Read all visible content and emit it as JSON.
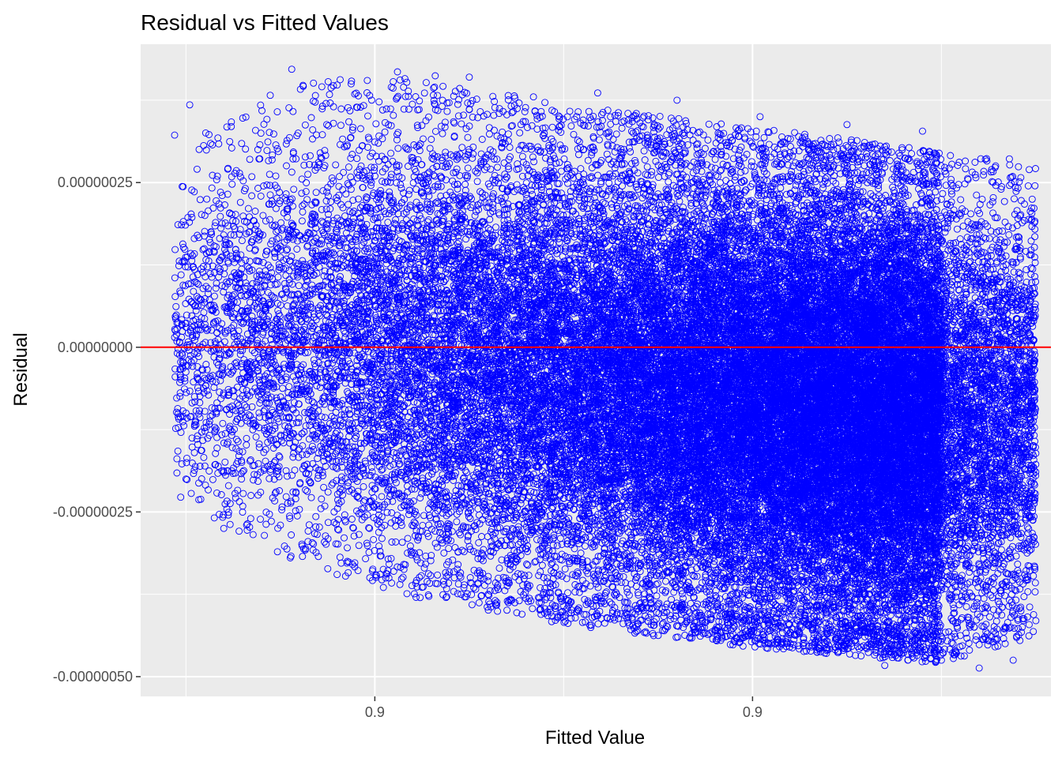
{
  "chart_data": {
    "type": "scatter",
    "title": "Residual vs Fitted Values",
    "xlabel": "Fitted Value",
    "ylabel": "Residual",
    "x_ticks": [
      {
        "position": 0.9995,
        "label": "0.9"
      },
      {
        "position": 1.0005,
        "label": "0.9"
      }
    ],
    "x_minor_ticks": [
      0.999,
      1.0,
      1.001
    ],
    "xlim": [
      0.99888,
      1.00129
    ],
    "y_ticks": [
      {
        "value": 2.5e-07,
        "label": "0.00000025"
      },
      {
        "value": 0,
        "label": "0.00000000"
      },
      {
        "value": -2.5e-07,
        "label": "-0.00000025"
      },
      {
        "value": -5e-07,
        "label": "-0.00000050"
      }
    ],
    "ylim": [
      -5.3e-07,
      4.6e-07
    ],
    "grid": true,
    "legend": "none",
    "reference_line": {
      "y": 0,
      "color": "#ff0000"
    },
    "point_color": "#0000ff",
    "panel_background": "#ebebeb",
    "point_shape": "open-circle",
    "points": [
      [
        0.99897,
        3.22e-07
      ],
      [
        0.99901,
        3.68e-07
      ],
      [
        0.99912,
        3.35e-07
      ],
      [
        0.99928,
        4.22e-07
      ],
      [
        0.9994,
        3.98e-07
      ],
      [
        0.99948,
        4.05e-07
      ],
      [
        0.99956,
        4.18e-07
      ],
      [
        0.99966,
        4.12e-07
      ],
      [
        0.99975,
        4.1e-07
      ],
      [
        0.99992,
        3.8e-07
      ],
      [
        1.00009,
        3.86e-07
      ],
      [
        1.0003,
        3.75e-07
      ],
      [
        1.00052,
        3.5e-07
      ],
      [
        1.00075,
        3.38e-07
      ],
      [
        1.00095,
        3.28e-07
      ],
      [
        1.00118,
        2.86e-07
      ],
      [
        0.9991,
        -2.75e-07
      ],
      [
        0.99925,
        -2.7e-07
      ],
      [
        0.9994,
        -3.45e-07
      ],
      [
        0.99955,
        -3.4e-07
      ],
      [
        0.99962,
        -3.8e-07
      ],
      [
        0.9998,
        -3.75e-07
      ],
      [
        0.99995,
        -3.97e-07
      ],
      [
        1.00013,
        -4e-07
      ],
      [
        1.0003,
        -4.23e-07
      ],
      [
        1.00052,
        -4.43e-07
      ],
      [
        1.00072,
        -4.55e-07
      ],
      [
        1.00085,
        -4.83e-07
      ],
      [
        1.001,
        -4.75e-07
      ],
      [
        1.0011,
        -4.87e-07
      ],
      [
        1.00119,
        -4.75e-07
      ],
      [
        1.00125,
        -4.15e-07
      ],
      [
        0.99897,
        1.5e-08
      ],
      [
        0.999,
        -1e-07
      ],
      [
        0.99905,
        2e-07
      ],
      [
        0.99898,
        -1.22e-07
      ],
      [
        0.99899,
        2.44e-07
      ],
      [
        0.999,
        -2e-07
      ],
      [
        0.99903,
        1.7e-07
      ],
      [
        0.99913,
        -2.22e-07
      ]
    ],
    "generated_point_count": 42000,
    "envelope": [
      {
        "x": 0.99897,
        "upper": 3e-07,
        "lower": -2.3e-07
      },
      {
        "x": 0.9993,
        "upper": 4.1e-07,
        "lower": -3.3e-07
      },
      {
        "x": 0.9996,
        "upper": 4.1e-07,
        "lower": -3.8e-07
      },
      {
        "x": 1.0,
        "upper": 3.7e-07,
        "lower": -4.2e-07
      },
      {
        "x": 1.0004,
        "upper": 3.4e-07,
        "lower": -4.5e-07
      },
      {
        "x": 1.0008,
        "upper": 3.15e-07,
        "lower": -4.7e-07
      },
      {
        "x": 1.001,
        "upper": 2.95e-07,
        "lower": -4.8e-07
      },
      {
        "x": 1.00125,
        "upper": 2.8e-07,
        "lower": -4.4e-07
      }
    ],
    "density_profile": [
      {
        "x": 0.99897,
        "weight": 0.15
      },
      {
        "x": 0.9993,
        "weight": 0.35
      },
      {
        "x": 0.9996,
        "weight": 0.6
      },
      {
        "x": 1.0,
        "weight": 1.0
      },
      {
        "x": 1.0004,
        "weight": 1.6
      },
      {
        "x": 1.0007,
        "weight": 2.2
      },
      {
        "x": 1.00099,
        "weight": 2.4
      },
      {
        "x": 1.00101,
        "weight": 0.9
      },
      {
        "x": 1.00125,
        "weight": 0.7
      }
    ]
  }
}
